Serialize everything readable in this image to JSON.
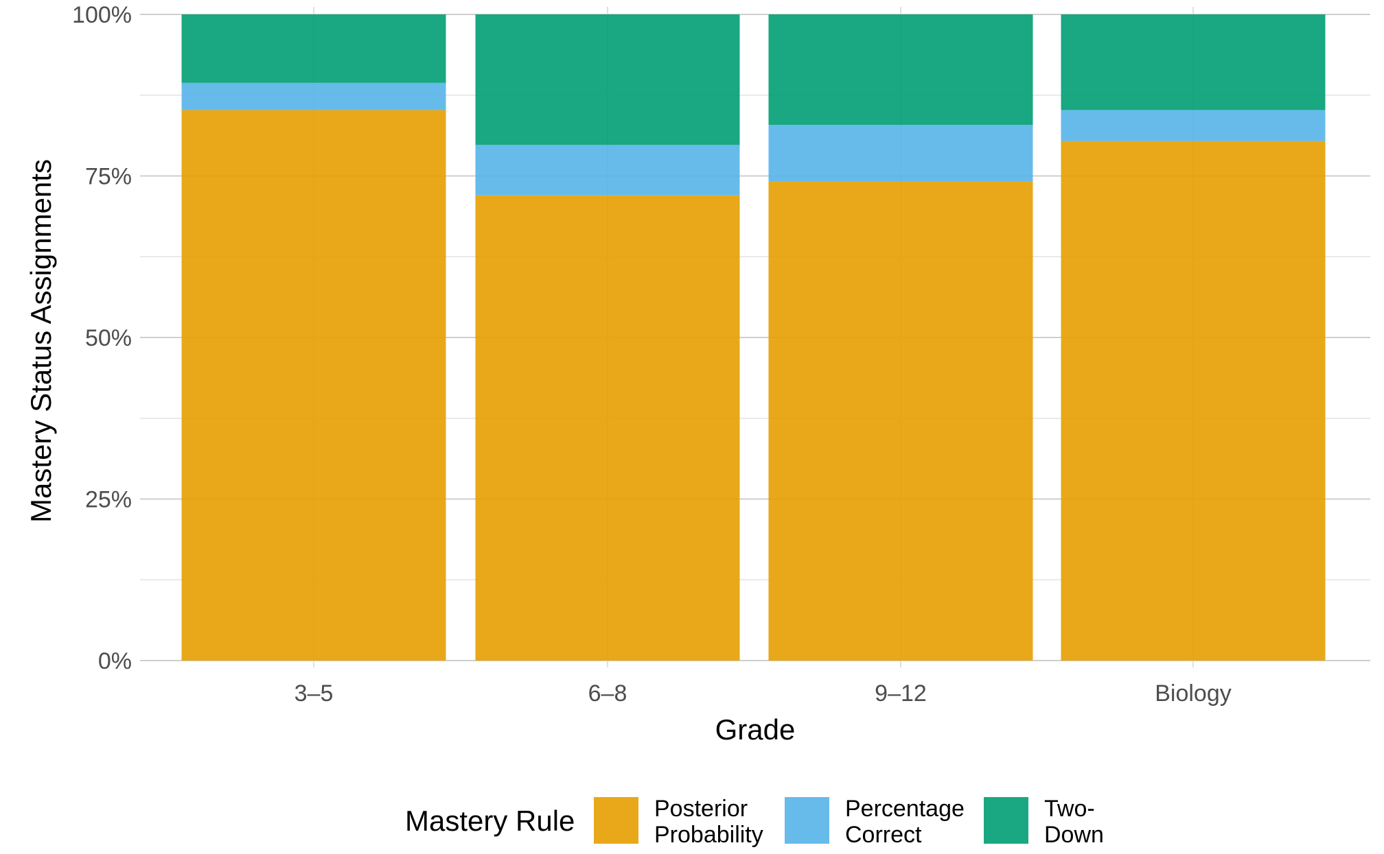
{
  "chart_data": {
    "type": "bar",
    "stacked": true,
    "xlabel": "Grade",
    "ylabel": "Mastery Status Assignments",
    "categories": [
      "3–5",
      "6–8",
      "9–12",
      "Biology"
    ],
    "ylim": [
      0,
      100
    ],
    "yticks": [
      "0%",
      "25%",
      "50%",
      "75%",
      "100%"
    ],
    "grid": true,
    "legend": {
      "title": "Mastery Rule",
      "position": "bottom"
    },
    "series": [
      {
        "name": "Posterior Probability",
        "label_lines": [
          "Posterior",
          "Probability"
        ],
        "color": "#E69F00",
        "values": [
          85.2,
          72.0,
          74.2,
          80.4
        ]
      },
      {
        "name": "Percentage Correct",
        "label_lines": [
          "Percentage",
          "Correct"
        ],
        "color": "#56B4E9",
        "values": [
          4.2,
          7.8,
          8.7,
          4.8
        ]
      },
      {
        "name": "Two-Down",
        "label_lines": [
          "Two-",
          "Down"
        ],
        "color": "#009E73",
        "values": [
          10.6,
          20.2,
          17.1,
          14.8
        ]
      }
    ]
  }
}
